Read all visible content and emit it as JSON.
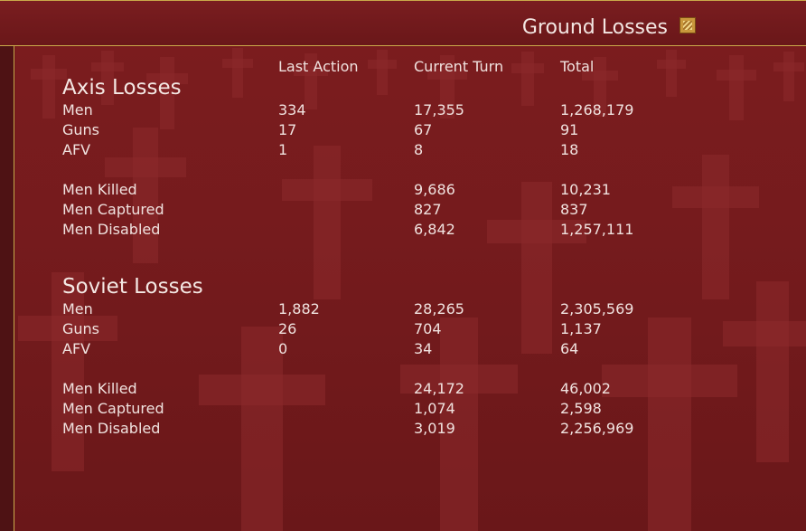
{
  "window": {
    "title": "Ground Losses",
    "icon": "graph-icon"
  },
  "columns": [
    "Last Action",
    "Current Turn",
    "Total"
  ],
  "axis": {
    "heading": "Axis Losses",
    "rows": [
      {
        "label": "Men",
        "last": "334",
        "turn": "17,355",
        "total": "1,268,179"
      },
      {
        "label": "Guns",
        "last": "17",
        "turn": "67",
        "total": "91"
      },
      {
        "label": "AFV",
        "last": "1",
        "turn": "8",
        "total": "18"
      },
      {
        "label": "Men Killed",
        "last": "",
        "turn": "9,686",
        "total": "10,231"
      },
      {
        "label": "Men Captured",
        "last": "",
        "turn": "827",
        "total": "837"
      },
      {
        "label": "Men Disabled",
        "last": "",
        "turn": "6,842",
        "total": "1,257,111"
      }
    ]
  },
  "soviet": {
    "heading": "Soviet Losses",
    "rows": [
      {
        "label": "Men",
        "last": "1,882",
        "turn": "28,265",
        "total": "2,305,569"
      },
      {
        "label": "Guns",
        "last": "26",
        "turn": "704",
        "total": "1,137"
      },
      {
        "label": "AFV",
        "last": "0",
        "turn": "34",
        "total": "64"
      },
      {
        "label": "Men Killed",
        "last": "",
        "turn": "24,172",
        "total": "46,002"
      },
      {
        "label": "Men Captured",
        "last": "",
        "turn": "1,074",
        "total": "2,598"
      },
      {
        "label": "Men Disabled",
        "last": "",
        "turn": "3,019",
        "total": "2,256,969"
      }
    ]
  }
}
